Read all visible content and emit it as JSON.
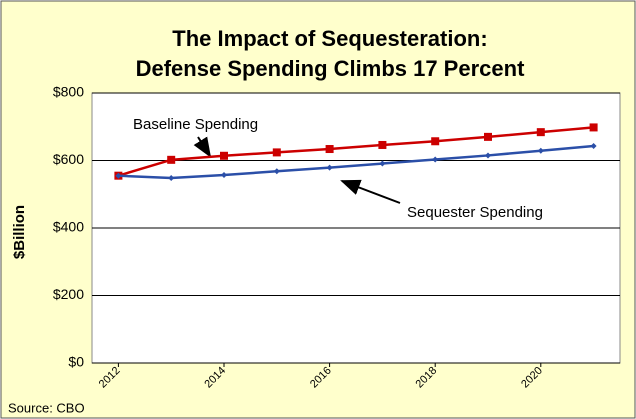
{
  "chart_data": {
    "type": "line",
    "title": "The Impact of Sequesteration:",
    "subtitle": "Defense Spending Climbs 17 Percent",
    "y_label": "$Billion",
    "source": "Source: CBO",
    "annotations": [
      "Baseline Spending",
      "Sequester Spending"
    ],
    "x": [
      2012,
      2013,
      2014,
      2015,
      2016,
      2017,
      2018,
      2019,
      2020,
      2021
    ],
    "series": [
      {
        "name": "Baseline Spending",
        "color": "#cc0000",
        "values": [
          555,
          602,
          614,
          624,
          634,
          646,
          657,
          670,
          684,
          698
        ]
      },
      {
        "name": "Sequester Spending",
        "color": "#2b4fa8",
        "values": [
          555,
          548,
          557,
          568,
          579,
          591,
          603,
          615,
          629,
          643
        ]
      }
    ],
    "xlim": [
      2011.5,
      2021.5
    ],
    "xticks": [
      2012,
      2014,
      2016,
      2018,
      2020
    ],
    "ylim": [
      0,
      800
    ],
    "yticks": [
      {
        "value": 0,
        "label": "$0"
      },
      {
        "value": 200,
        "label": "$200"
      },
      {
        "value": 400,
        "label": "$400"
      },
      {
        "value": 600,
        "label": "$600"
      },
      {
        "value": 800,
        "label": "$800"
      }
    ],
    "grid": true
  }
}
